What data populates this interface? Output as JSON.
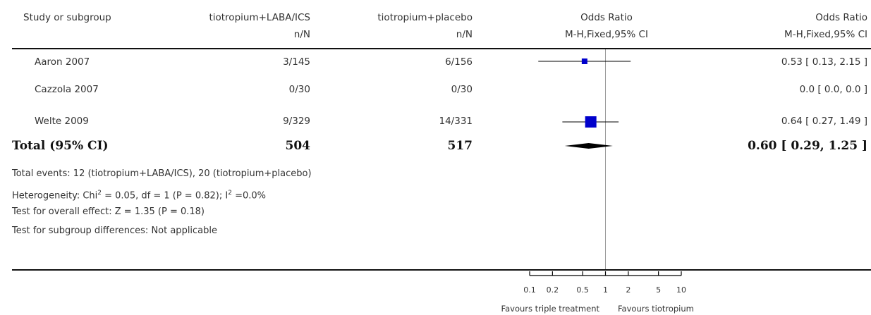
{
  "headers": {
    "study": "Study or subgroup",
    "group1": "tiotropium+LABA/ICS",
    "group1_sub": "n/N",
    "group2": "tiotropium+placebo",
    "group2_sub": "n/N",
    "plot_title": "Odds Ratio",
    "plot_sub": "M-H,Fixed,95% CI",
    "est_title": "Odds Ratio",
    "est_sub": "M-H,Fixed,95% CI"
  },
  "studies": [
    {
      "name": "Aaron 2007",
      "g1": "3/145",
      "g2": "6/156",
      "ci_text": "0.53 [ 0.13, 2.15 ]"
    },
    {
      "name": "Cazzola 2007",
      "g1": "0/30",
      "g2": "0/30",
      "ci_text": "0.0 [ 0.0, 0.0 ]"
    },
    {
      "name": "Welte 2009",
      "g1": "9/329",
      "g2": "14/331",
      "ci_text": "0.64 [ 0.27, 1.49 ]"
    }
  ],
  "total": {
    "label": "Total (95% CI)",
    "g1": "504",
    "g2": "517",
    "ci_text": "0.60 [ 0.29, 1.25 ]"
  },
  "footnotes": {
    "events": "Total events: 12 (tiotropium+LABA/ICS), 20 (tiotropium+placebo)",
    "het_a": "Heterogeneity: Chi",
    "het_sup1": "2",
    "het_b": " = 0.05, df = 1 (P = 0.82); I",
    "het_sup2": "2",
    "het_c": " =0.0%",
    "overall": "Test for overall effect: Z = 1.35 (P = 0.18)",
    "subgroup": "Test for subgroup differences: Not applicable"
  },
  "axis": {
    "favours_left": "Favours triple treatment",
    "favours_right": "Favours tiotropium"
  },
  "colors": {
    "square": "#0000cc",
    "diamond": "#000000",
    "line": "#000000",
    "null_line": "#999999"
  },
  "chart_data": {
    "type": "forest",
    "scale": "log",
    "xlim": [
      0.1,
      10
    ],
    "null_value": 1,
    "ticks": [
      0.1,
      0.2,
      0.5,
      1,
      2,
      5,
      10
    ],
    "tick_labels": [
      "0.1",
      "0.2",
      "0.5",
      "1",
      "2",
      "5",
      "10"
    ],
    "points": [
      {
        "study": "Aaron 2007",
        "or": 0.53,
        "lower": 0.13,
        "upper": 2.15,
        "events1": 3,
        "n1": 145,
        "events2": 6,
        "n2": 156
      },
      {
        "study": "Cazzola 2007",
        "or": null,
        "lower": null,
        "upper": null,
        "events1": 0,
        "n1": 30,
        "events2": 0,
        "n2": 30
      },
      {
        "study": "Welte 2009",
        "or": 0.64,
        "lower": 0.27,
        "upper": 1.49,
        "events1": 9,
        "n1": 329,
        "events2": 14,
        "n2": 331
      }
    ],
    "pooled": {
      "or": 0.6,
      "lower": 0.29,
      "upper": 1.25,
      "total1": 504,
      "total2": 517
    }
  }
}
